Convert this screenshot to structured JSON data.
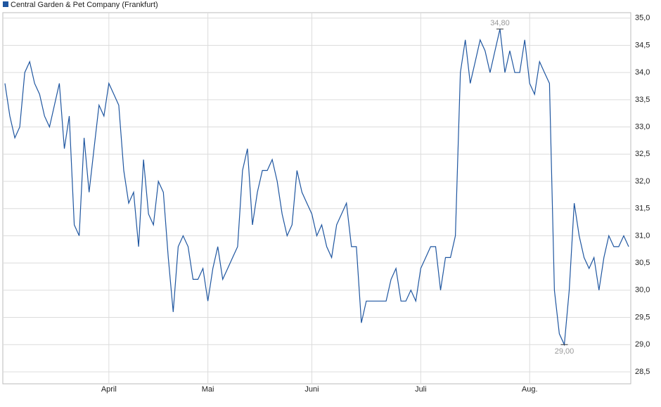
{
  "chart_data": {
    "type": "line",
    "series": [
      {
        "name": "Central Garden & Pet Company (Frankfurt)",
        "color": "#1f56a0",
        "values": [
          33.8,
          33.2,
          32.8,
          33.0,
          34.0,
          34.2,
          33.8,
          33.6,
          33.2,
          33.0,
          33.4,
          33.8,
          32.6,
          33.2,
          31.2,
          31.0,
          32.8,
          31.8,
          32.6,
          33.4,
          33.2,
          33.8,
          33.6,
          33.4,
          32.2,
          31.6,
          31.8,
          30.8,
          32.4,
          31.4,
          31.2,
          32.0,
          31.8,
          30.6,
          29.6,
          30.8,
          31.0,
          30.8,
          30.2,
          30.2,
          30.4,
          29.8,
          30.4,
          30.8,
          30.2,
          30.4,
          30.6,
          30.8,
          32.2,
          32.6,
          31.2,
          31.8,
          32.2,
          32.2,
          32.4,
          32.0,
          31.4,
          31.0,
          31.2,
          32.2,
          31.8,
          31.6,
          31.4,
          31.0,
          31.2,
          30.8,
          30.6,
          31.2,
          31.4,
          31.6,
          30.8,
          30.8,
          29.4,
          29.8,
          29.8,
          29.8,
          29.8,
          29.8,
          30.2,
          30.4,
          29.8,
          29.8,
          30.0,
          29.8,
          30.4,
          30.6,
          30.8,
          30.8,
          30.0,
          30.6,
          30.6,
          31.0,
          34.0,
          34.6,
          33.8,
          34.2,
          34.6,
          34.4,
          34.0,
          34.4,
          34.8,
          34.0,
          34.4,
          34.0,
          34.0,
          34.6,
          33.8,
          33.6,
          34.2,
          34.0,
          33.8,
          30.0,
          29.2,
          29.0,
          30.0,
          31.6,
          31.0,
          30.6,
          30.4,
          30.6,
          30.0,
          30.6,
          31.0,
          30.8,
          30.8,
          31.0,
          30.8
        ],
        "value_labels": [
          null,
          null,
          null,
          null,
          null,
          null,
          null,
          null,
          null,
          null,
          null,
          null,
          null,
          null,
          null,
          null,
          null,
          null,
          null,
          null,
          null,
          null,
          null,
          null,
          null,
          null,
          null,
          null,
          null,
          null,
          null,
          null,
          null,
          null,
          null,
          null,
          null,
          null,
          null,
          null,
          null,
          null,
          null,
          null,
          null,
          null,
          null,
          null,
          null,
          null,
          null,
          null,
          null,
          null,
          null,
          null,
          null,
          null,
          null,
          null,
          null,
          null,
          null,
          null,
          null,
          null,
          null,
          null,
          null,
          null,
          null,
          null,
          null,
          null,
          null,
          null,
          null,
          null,
          null,
          null,
          null,
          null,
          null,
          null,
          null,
          null,
          null,
          null,
          null,
          null,
          null,
          null,
          null,
          null,
          null,
          null,
          null,
          null,
          null,
          null,
          "34,80",
          null,
          null,
          null,
          null,
          null,
          null,
          null,
          null,
          null,
          null,
          null,
          null,
          "29,00",
          null,
          null,
          null,
          null,
          null,
          null,
          null,
          null,
          null,
          null,
          null,
          null,
          null
        ]
      }
    ],
    "categories": [
      null,
      null,
      null,
      null,
      null,
      null,
      null,
      null,
      null,
      null,
      null,
      null,
      null,
      null,
      null,
      null,
      null,
      null,
      null,
      null,
      null,
      "April",
      null,
      null,
      null,
      null,
      null,
      null,
      null,
      null,
      null,
      null,
      null,
      null,
      null,
      null,
      null,
      null,
      null,
      null,
      null,
      "Mai",
      null,
      null,
      null,
      null,
      null,
      null,
      null,
      null,
      null,
      null,
      null,
      null,
      null,
      null,
      null,
      null,
      null,
      null,
      null,
      null,
      "Juni",
      null,
      null,
      null,
      null,
      null,
      null,
      null,
      null,
      null,
      null,
      null,
      null,
      null,
      null,
      null,
      null,
      null,
      null,
      null,
      null,
      null,
      "Juli",
      null,
      null,
      null,
      null,
      null,
      null,
      null,
      null,
      null,
      null,
      null,
      null,
      null,
      null,
      null,
      null,
      null,
      null,
      null,
      null,
      null,
      "Aug.",
      null,
      null,
      null,
      null,
      null,
      null,
      null,
      null,
      null,
      null,
      null,
      null,
      null,
      null,
      null,
      null,
      null,
      null,
      null,
      null
    ],
    "ylim": [
      28.28,
      35.1
    ],
    "yticks": [
      {
        "value": 28.5,
        "label": "28,5"
      },
      {
        "value": 29,
        "label": "29,0"
      },
      {
        "value": 29.5,
        "label": "29,5"
      },
      {
        "value": 30,
        "label": "30,0"
      },
      {
        "value": 30.5,
        "label": "30,5"
      },
      {
        "value": 31,
        "label": "31,0"
      },
      {
        "value": 31.5,
        "label": "31,5"
      },
      {
        "value": 32,
        "label": "32,0"
      },
      {
        "value": 32.5,
        "label": "32,5"
      },
      {
        "value": 33,
        "label": "33,0"
      },
      {
        "value": 33.5,
        "label": "33,5"
      },
      {
        "value": 34,
        "label": "34,0"
      },
      {
        "value": 34.5,
        "label": "34,5"
      },
      {
        "value": 35,
        "label": "35,0"
      }
    ],
    "grid": true,
    "legend": "top-left"
  }
}
